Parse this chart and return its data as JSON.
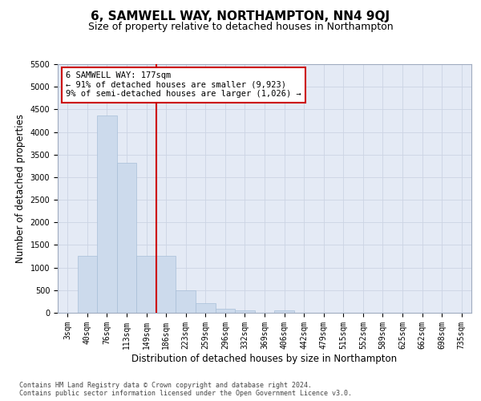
{
  "title": "6, SAMWELL WAY, NORTHAMPTON, NN4 9QJ",
  "subtitle": "Size of property relative to detached houses in Northampton",
  "xlabel": "Distribution of detached houses by size in Northampton",
  "ylabel": "Number of detached properties",
  "footnote1": "Contains HM Land Registry data © Crown copyright and database right 2024.",
  "footnote2": "Contains public sector information licensed under the Open Government Licence v3.0.",
  "bin_labels": [
    "3sqm",
    "40sqm",
    "76sqm",
    "113sqm",
    "149sqm",
    "186sqm",
    "223sqm",
    "259sqm",
    "296sqm",
    "332sqm",
    "369sqm",
    "406sqm",
    "442sqm",
    "479sqm",
    "515sqm",
    "552sqm",
    "589sqm",
    "625sqm",
    "662sqm",
    "698sqm",
    "735sqm"
  ],
  "bar_heights": [
    0,
    1260,
    4360,
    3310,
    1260,
    1260,
    490,
    210,
    90,
    50,
    0,
    60,
    0,
    0,
    0,
    0,
    0,
    0,
    0,
    0,
    0
  ],
  "bar_color": "#ccdaec",
  "bar_edge_color": "#a8bfd8",
  "vline_index": 5,
  "vline_color": "#cc0000",
  "annotation_text": "6 SAMWELL WAY: 177sqm\n← 91% of detached houses are smaller (9,923)\n9% of semi-detached houses are larger (1,026) →",
  "annotation_box_color": "#ffffff",
  "annotation_box_edge": "#cc0000",
  "ylim": [
    0,
    5500
  ],
  "yticks": [
    0,
    500,
    1000,
    1500,
    2000,
    2500,
    3000,
    3500,
    4000,
    4500,
    5000,
    5500
  ],
  "grid_color": "#ccd4e4",
  "bg_color": "#e4eaf5",
  "title_fontsize": 11,
  "subtitle_fontsize": 9,
  "label_fontsize": 8.5,
  "tick_fontsize": 7,
  "annot_fontsize": 7.5,
  "footnote_fontsize": 6
}
